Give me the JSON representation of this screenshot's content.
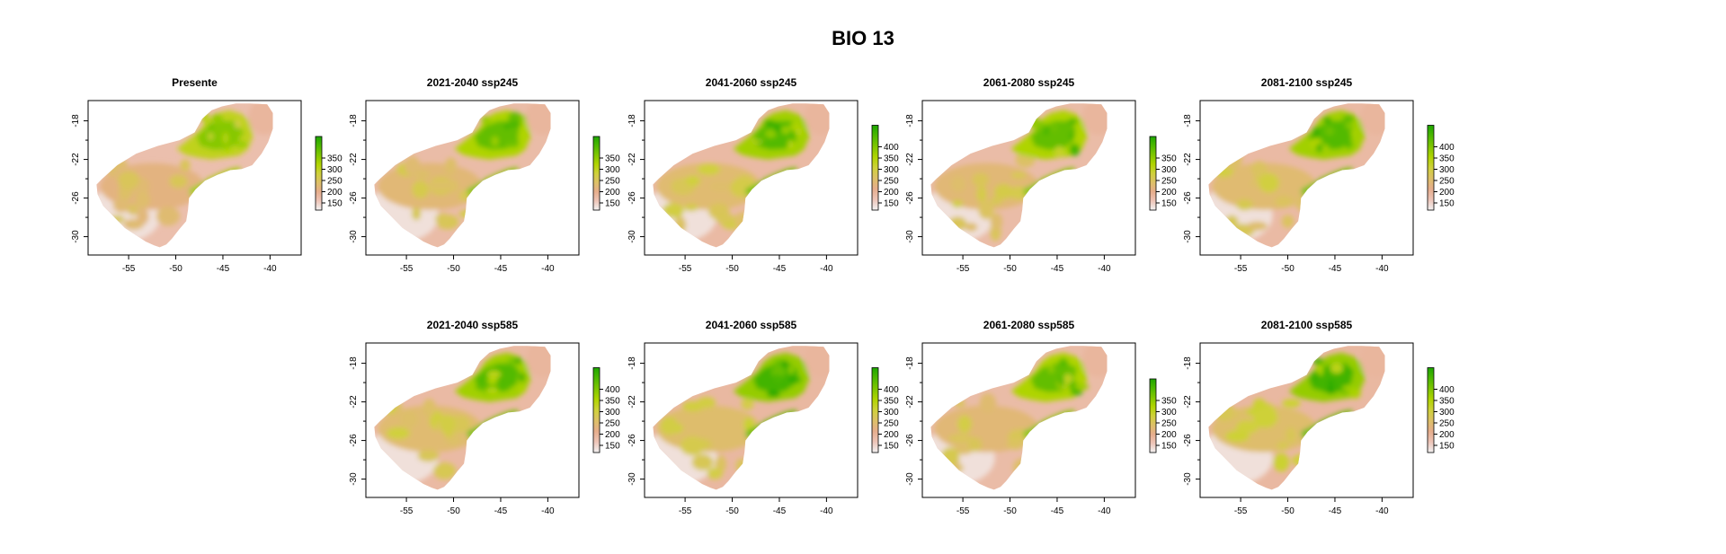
{
  "figure_title": "BIO 13",
  "colors": {
    "ramp": [
      "#f2f2f2",
      "#edc4b7",
      "#e6ad8c",
      "#ddc067",
      "#cfd13a",
      "#b0d400",
      "#7fc600",
      "#4db800",
      "#1ea600"
    ],
    "frame": "#000000",
    "ocean": "#ffffff"
  },
  "x_ticks": [
    "-55",
    "-50",
    "-45",
    "-40"
  ],
  "y_ticks": [
    "-18",
    "-22",
    "-26",
    "-30"
  ],
  "panels": [
    {
      "title": "Presente",
      "row": 0,
      "col": 0,
      "legend": [
        "350",
        "300",
        "250",
        "200",
        "150"
      ],
      "intensity": 0.85
    },
    {
      "title": "2021-2040 ssp245",
      "row": 0,
      "col": 1,
      "legend": [
        "350",
        "300",
        "250",
        "200",
        "150"
      ],
      "intensity": 0.95
    },
    {
      "title": "2041-2060 ssp245",
      "row": 0,
      "col": 2,
      "legend": [
        "400",
        "350",
        "300",
        "250",
        "200",
        "150"
      ],
      "intensity": 1.0
    },
    {
      "title": "2061-2080 ssp245",
      "row": 0,
      "col": 3,
      "legend": [
        "350",
        "300",
        "250",
        "200",
        "150"
      ],
      "intensity": 0.95
    },
    {
      "title": "2081-2100 ssp245",
      "row": 0,
      "col": 4,
      "legend": [
        "400",
        "350",
        "300",
        "250",
        "200",
        "150"
      ],
      "intensity": 1.0
    },
    {
      "title": "2021-2040 ssp585",
      "row": 1,
      "col": 1,
      "legend": [
        "400",
        "350",
        "300",
        "250",
        "200",
        "150"
      ],
      "intensity": 1.0
    },
    {
      "title": "2041-2060 ssp585",
      "row": 1,
      "col": 2,
      "legend": [
        "400",
        "350",
        "300",
        "250",
        "200",
        "150"
      ],
      "intensity": 1.05
    },
    {
      "title": "2061-2080 ssp585",
      "row": 1,
      "col": 3,
      "legend": [
        "350",
        "300",
        "250",
        "200",
        "150"
      ],
      "intensity": 0.95
    },
    {
      "title": "2081-2100 ssp585",
      "row": 1,
      "col": 4,
      "legend": [
        "400",
        "350",
        "300",
        "250",
        "200",
        "150"
      ],
      "intensity": 1.05
    }
  ]
}
